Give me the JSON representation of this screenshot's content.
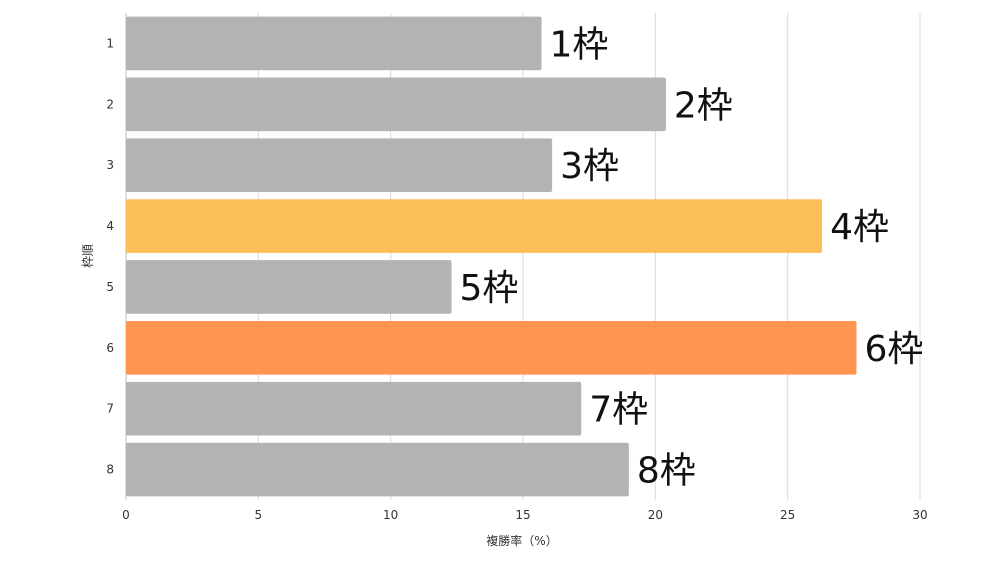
{
  "chart_data": {
    "type": "bar",
    "orientation": "horizontal",
    "categories": [
      "1",
      "2",
      "3",
      "4",
      "5",
      "6",
      "7",
      "8"
    ],
    "values": [
      15.7,
      20.4,
      16.1,
      26.3,
      12.3,
      27.6,
      17.2,
      19.0
    ],
    "bar_labels": [
      "1枠",
      "2枠",
      "3枠",
      "4枠",
      "5枠",
      "6枠",
      "7枠",
      "8枠"
    ],
    "bar_colors": [
      "#b3b3b3",
      "#b3b3b3",
      "#b3b3b3",
      "#fdbf5a",
      "#b3b3b3",
      "#ff9550",
      "#b3b3b3",
      "#b3b3b3"
    ],
    "xlabel": "複勝率（%）",
    "ylabel": "枠順",
    "xlim": [
      0,
      30
    ],
    "xticks": [
      0,
      5,
      10,
      15,
      20,
      25,
      30
    ],
    "grid": "vertical"
  }
}
